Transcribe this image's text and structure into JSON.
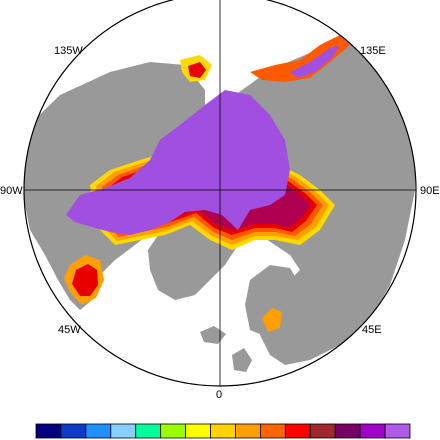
{
  "map": {
    "projection": "north-polar-stereographic",
    "colors": {
      "ocean": "#ffffff",
      "land": "#999999",
      "ice_interior": "#a04fe0",
      "border": "#000000"
    },
    "longitude_labels": [
      {
        "id": "lon-135w",
        "text": "135W"
      },
      {
        "id": "lon-135e",
        "text": "135E"
      },
      {
        "id": "lon-90w",
        "text": "90W"
      },
      {
        "id": "lon-90e",
        "text": "90E"
      },
      {
        "id": "lon-45w",
        "text": "45W"
      },
      {
        "id": "lon-45e",
        "text": "45E"
      },
      {
        "id": "lon-0",
        "text": "0"
      }
    ],
    "ice_edge_palette": [
      "#ffd800",
      "#ffa000",
      "#ff5a00",
      "#e80000",
      "#b00050",
      "#a04fe0"
    ]
  },
  "colorbar": {
    "swatches": [
      "#000080",
      "#0a3cc8",
      "#1e90ff",
      "#87cefa",
      "#00ff9c",
      "#9cff00",
      "#ffff00",
      "#ffd200",
      "#ffa000",
      "#ff6400",
      "#ff0000",
      "#a0282d",
      "#780064",
      "#a000c8",
      "#b05ae8"
    ]
  }
}
